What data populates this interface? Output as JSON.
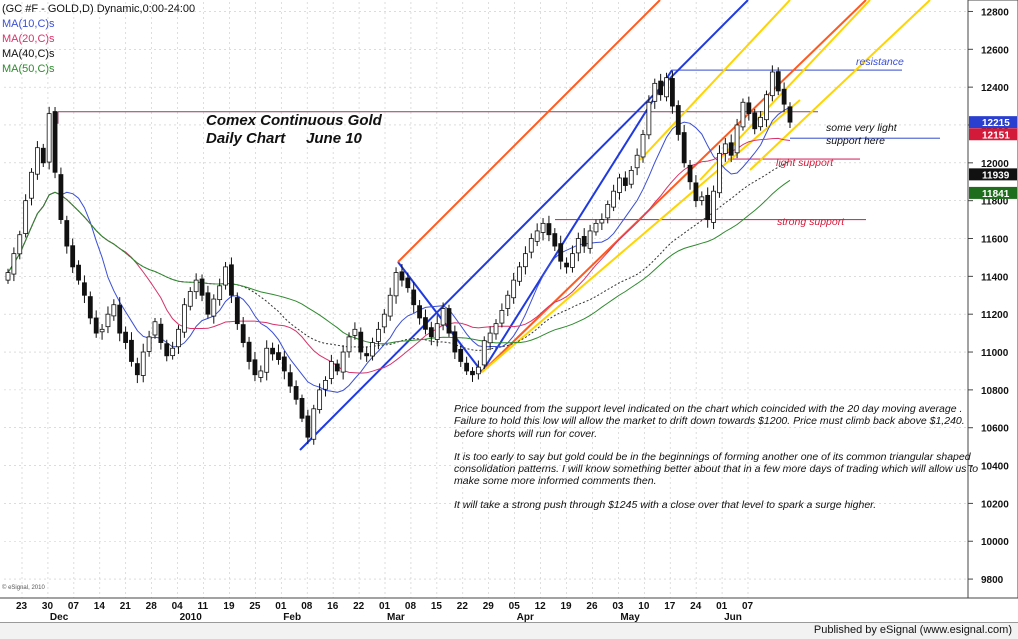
{
  "legend": {
    "symbol_line": "(GC #F - GOLD,D) Dynamic,0:00-24:00",
    "ma10": "MA(10,C)s",
    "ma20": "MA(20,C)s",
    "ma40": "MA(40,C)s",
    "ma50": "MA(50,C)s"
  },
  "colors": {
    "ma10": "#3b4fd6",
    "ma20": "#d6336b",
    "ma40": "#333333",
    "ma50": "#2f8a2f",
    "candle_bull": "#ffffff",
    "candle_bear": "#111111",
    "fork_blue": "#1f3ae0",
    "fork_orange": "#ff5a1f",
    "fork_yellow": "#ffd400",
    "resistance_line": "#5b6fd6",
    "support_line": "#d6336b",
    "prior_high_line": "#8a4060"
  },
  "title": {
    "line1": "Comex Continuous Gold",
    "line2": "Daily Chart     June 10"
  },
  "annotations": {
    "resistance": "resistance",
    "very_light_1": "some very light",
    "very_light_2": "support here",
    "light_support": "light support",
    "strong_support": "strong support"
  },
  "commentary": {
    "p1": "Price bounced from the support level indicated on the chart which coincided with the 20 day moving average . Failure to hold this low will allow the market to drift down towards $1200. Price must climb back above $1,240. before shorts will run for cover.",
    "p2": "It is too early to say but gold could be in the beginnings of forming another one of its common triangular shaped consolidation patterns. I will know something better about that in a few more days of trading which will allow us to make some more informed comments then.",
    "p3": "It will take a strong push through $1245 with a close over that level to spark a surge higher."
  },
  "footer": "Published by eSignal (www.esignal.com)",
  "copyright": "© eSignal, 2010",
  "chart_data": {
    "type": "candlestick",
    "instrument": "GC #F - GOLD",
    "ylim": [
      9700,
      12850
    ],
    "y_ticks": [
      9800,
      10000,
      10200,
      10400,
      10600,
      10800,
      11000,
      11200,
      11400,
      11600,
      11800,
      12000,
      12200,
      12400,
      12600,
      12800
    ],
    "price_boxes": [
      {
        "value": "12215",
        "bg": "#2a3fd0"
      },
      {
        "value": "12151",
        "bg": "#d41a3a"
      },
      {
        "value": "11939",
        "bg": "#111111"
      },
      {
        "value": "11841",
        "bg": "#1e6e1e"
      }
    ],
    "x_day_labels": [
      "23",
      "30",
      "07",
      "14",
      "21",
      "28",
      "04",
      "11",
      "19",
      "25",
      "01",
      "08",
      "16",
      "22",
      "01",
      "08",
      "15",
      "22",
      "29",
      "05",
      "12",
      "19",
      "26",
      "03",
      "10",
      "17",
      "24",
      "01",
      "07"
    ],
    "x_month_labels": [
      "Dec",
      "2010",
      "Feb",
      "Mar",
      "Apr",
      "May",
      "Jun"
    ],
    "horizontal_levels": [
      {
        "name": "prior high",
        "value": 12270
      },
      {
        "name": "resistance",
        "value": 12490
      },
      {
        "name": "very light support",
        "value": 12130
      },
      {
        "name": "light support",
        "value": 12020
      },
      {
        "name": "strong support",
        "value": 11700
      }
    ],
    "closes": [
      11420,
      11520,
      11620,
      11800,
      11950,
      12080,
      12000,
      12260,
      11950,
      11700,
      11560,
      11450,
      11380,
      11300,
      11180,
      11100,
      11120,
      11200,
      11250,
      11100,
      11050,
      10950,
      10880,
      11000,
      11080,
      11160,
      11050,
      10980,
      11020,
      11120,
      11250,
      11320,
      11380,
      11300,
      11200,
      11280,
      11350,
      11450,
      11300,
      11150,
      11050,
      10950,
      10880,
      10900,
      11020,
      10990,
      10960,
      10900,
      10820,
      10750,
      10650,
      10550,
      10700,
      10800,
      10850,
      10950,
      10900,
      11000,
      11080,
      11120,
      11000,
      10980,
      11050,
      11120,
      11200,
      11300,
      11420,
      11380,
      11340,
      11250,
      11180,
      11120,
      11080,
      11150,
      11230,
      11100,
      11000,
      10950,
      10900,
      10880,
      10920,
      11060,
      11100,
      11150,
      11220,
      11300,
      11380,
      11450,
      11520,
      11600,
      11640,
      11680,
      11620,
      11560,
      11480,
      11450,
      11520,
      11600,
      11560,
      11640,
      11680,
      11700,
      11780,
      11850,
      11920,
      11880,
      11960,
      12040,
      12150,
      12320,
      12420,
      12360,
      12450,
      12300,
      12150,
      12000,
      11900,
      11800,
      11820,
      11700,
      11850,
      12050,
      12100,
      12040,
      12200,
      12320,
      12260,
      12180,
      12240,
      12360,
      12480,
      12380,
      12310,
      12215
    ]
  }
}
